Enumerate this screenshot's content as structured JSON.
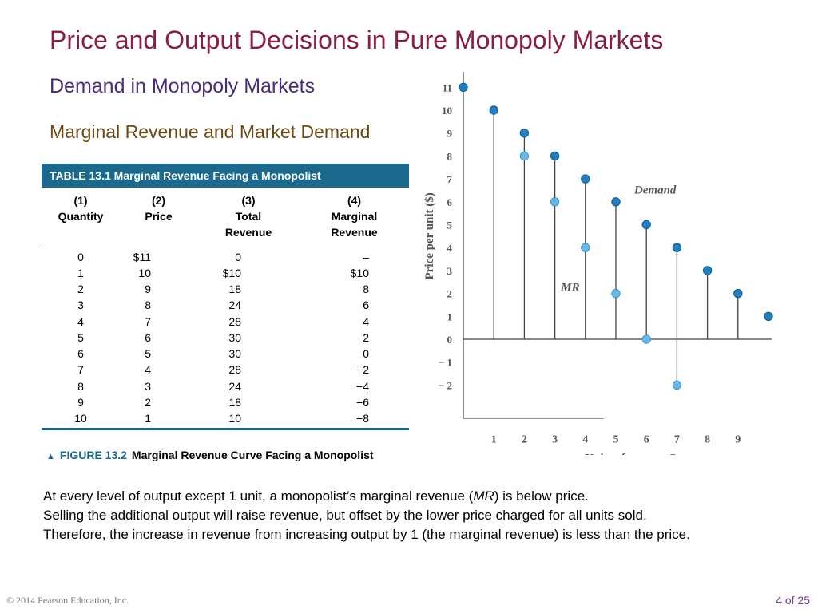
{
  "slide": {
    "title": "Price and Output Decisions in Pure Monopoly Markets",
    "subtitle": "Demand in Monopoly Markets",
    "section_heading": "Marginal Revenue and Market Demand"
  },
  "table": {
    "header": "TABLE 13.1  Marginal Revenue Facing a Monopolist",
    "columns": [
      {
        "num": "(1)",
        "l1": "Quantity",
        "l2": "",
        "l3": ""
      },
      {
        "num": "(2)",
        "l1": "Price",
        "l2": "",
        "l3": ""
      },
      {
        "num": "(3)",
        "l1": "Total",
        "l2": "Revenue",
        "l3": ""
      },
      {
        "num": "(4)",
        "l1": "Marginal",
        "l2": "Revenue",
        "l3": ""
      }
    ],
    "rows": [
      [
        "0",
        "$11",
        "0",
        "–"
      ],
      [
        "1",
        "10",
        "$10",
        "$10"
      ],
      [
        "2",
        "9",
        "18",
        "8"
      ],
      [
        "3",
        "8",
        "24",
        "6"
      ],
      [
        "4",
        "7",
        "28",
        "4"
      ],
      [
        "5",
        "6",
        "30",
        "2"
      ],
      [
        "6",
        "5",
        "30",
        "0"
      ],
      [
        "7",
        "4",
        "28",
        "−2"
      ],
      [
        "8",
        "3",
        "24",
        "−4"
      ],
      [
        "9",
        "2",
        "18",
        "−6"
      ],
      [
        "10",
        "1",
        "10",
        "−8"
      ]
    ]
  },
  "figure": {
    "number": "FIGURE 13.2",
    "caption": "Marginal Revenue Curve Facing a Monopolist"
  },
  "body": {
    "line1_before": "At every level of output except 1 unit, a monopolist’s marginal revenue (",
    "line1_mr": "MR",
    "line1_after": ") is below price.",
    "line2": "Selling the additional output will raise revenue, but offset  by the lower price charged for all units sold.",
    "line3": "Therefore, the increase in revenue from increasing output by 1 (the marginal revenue) is less than the price."
  },
  "footer": {
    "copyright": "© 2014 Pearson Education, Inc.",
    "page": "4 of 25"
  },
  "chart_data": {
    "type": "scatter",
    "xlabel": "Units of output, Q",
    "ylabel": "Price per unit ($)",
    "x_ticks": [
      "1",
      "2",
      "3",
      "4",
      "5",
      "6",
      "7",
      "8",
      "9"
    ],
    "y_ticks": [
      "11",
      "10",
      "9",
      "8",
      "7",
      "6",
      "5",
      "4",
      "3",
      "2",
      "1",
      "0",
      "− 1",
      "− 2"
    ],
    "ylim": [
      -2,
      11
    ],
    "series": [
      {
        "name": "Demand",
        "color": "#1f7fc0",
        "x": [
          0,
          1,
          2,
          3,
          4,
          5,
          6,
          7,
          8,
          9,
          10
        ],
        "y": [
          11,
          10,
          9,
          8,
          7,
          6,
          5,
          4,
          3,
          2,
          1
        ]
      },
      {
        "name": "MR",
        "color": "#6ab8e8",
        "x": [
          2,
          3,
          4,
          5,
          6,
          7
        ],
        "y": [
          8,
          6,
          4,
          2,
          0,
          -2
        ]
      }
    ]
  }
}
